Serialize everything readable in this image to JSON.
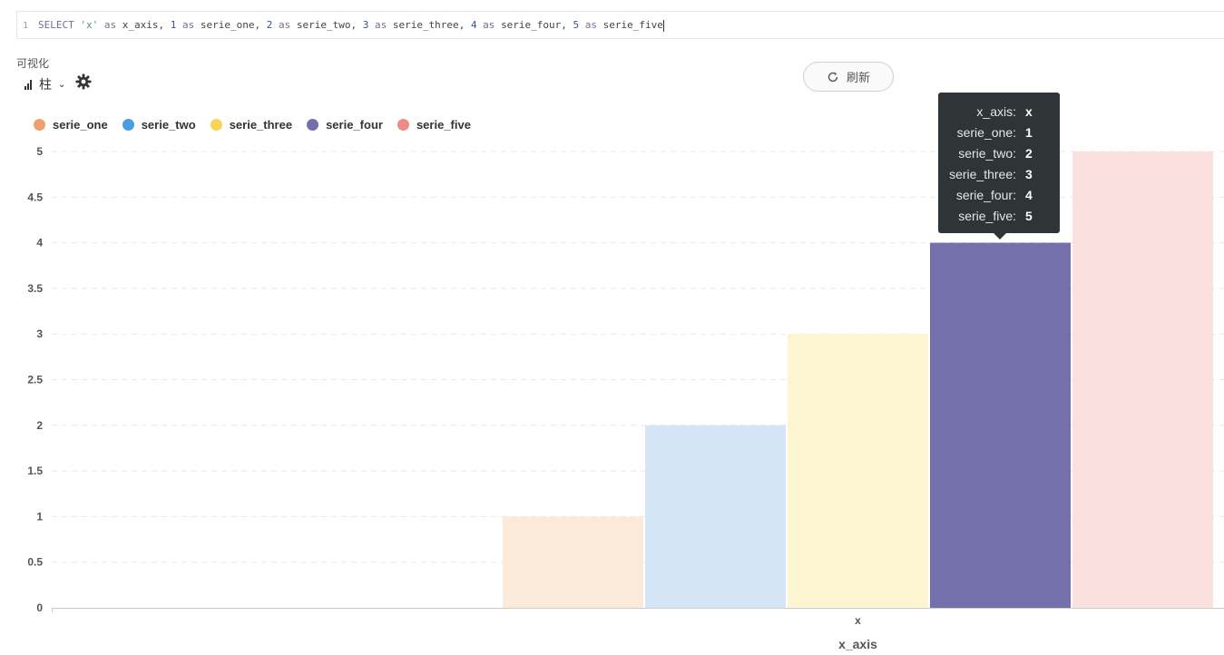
{
  "editor": {
    "line_number": "1",
    "tokens": [
      {
        "t": "SELECT ",
        "c": "kw"
      },
      {
        "t": "'x'",
        "c": "str"
      },
      {
        "t": " as ",
        "c": "kw"
      },
      {
        "t": "x_axis",
        "c": "ident"
      },
      {
        "t": ", ",
        "c": "ident"
      },
      {
        "t": "1",
        "c": "num"
      },
      {
        "t": " as ",
        "c": "kw"
      },
      {
        "t": "serie_one",
        "c": "ident"
      },
      {
        "t": ", ",
        "c": "ident"
      },
      {
        "t": "2",
        "c": "num"
      },
      {
        "t": " as ",
        "c": "kw"
      },
      {
        "t": "serie_two",
        "c": "ident"
      },
      {
        "t": ", ",
        "c": "ident"
      },
      {
        "t": "3",
        "c": "num"
      },
      {
        "t": " as ",
        "c": "kw"
      },
      {
        "t": "serie_three",
        "c": "ident"
      },
      {
        "t": ", ",
        "c": "ident"
      },
      {
        "t": "4",
        "c": "num"
      },
      {
        "t": " as ",
        "c": "kw"
      },
      {
        "t": "serie_four",
        "c": "ident"
      },
      {
        "t": ", ",
        "c": "ident"
      },
      {
        "t": "5",
        "c": "num"
      },
      {
        "t": " as ",
        "c": "kw"
      },
      {
        "t": "serie_five",
        "c": "ident"
      }
    ]
  },
  "visualization": {
    "label": "可视化",
    "chart_type_label": "柱",
    "chart_type_icon": "bar-chart-icon",
    "settings_icon": "gear-icon"
  },
  "refresh_button": {
    "label": "刷新",
    "icon": "refresh-icon"
  },
  "tooltip": {
    "rows": [
      {
        "key": "x_axis:",
        "value": "x"
      },
      {
        "key": "serie_one:",
        "value": "1"
      },
      {
        "key": "serie_two:",
        "value": "2"
      },
      {
        "key": "serie_three:",
        "value": "3"
      },
      {
        "key": "serie_four:",
        "value": "4"
      },
      {
        "key": "serie_five:",
        "value": "5"
      }
    ]
  },
  "chart_data": {
    "type": "bar",
    "categories": [
      "x"
    ],
    "xlabel": "x_axis",
    "ylabel": "",
    "ylim": [
      0,
      5
    ],
    "yticks": [
      "0",
      "0.5",
      "1",
      "1.5",
      "2",
      "2.5",
      "3",
      "3.5",
      "4",
      "4.5",
      "5"
    ],
    "grid": true,
    "legend_position": "top-left",
    "highlighted_series": "serie_four",
    "series": [
      {
        "name": "serie_one",
        "values": [
          1
        ],
        "color": "#f0a070",
        "fill": "#fbe9da"
      },
      {
        "name": "serie_two",
        "values": [
          2
        ],
        "color": "#4a9de0",
        "fill": "#d3e5f7"
      },
      {
        "name": "serie_three",
        "values": [
          3
        ],
        "color": "#f7d45a",
        "fill": "#fdf4d2"
      },
      {
        "name": "serie_four",
        "values": [
          4
        ],
        "color": "#7270ac",
        "fill": "#7470ac"
      },
      {
        "name": "serie_five",
        "values": [
          5
        ],
        "color": "#ef8a86",
        "fill": "#fbe0e0"
      }
    ]
  }
}
